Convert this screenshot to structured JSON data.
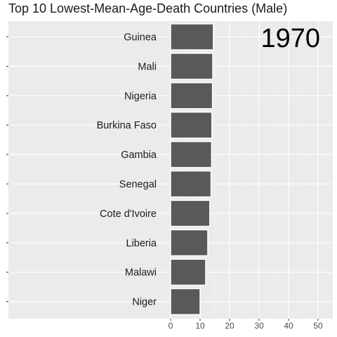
{
  "chart_data": {
    "type": "bar",
    "orientation": "horizontal",
    "title": "Top 10 Lowest-Mean-Age-Death Countries (Male)",
    "year_label": "1970",
    "categories": [
      "Guinea",
      "Mali",
      "Nigeria",
      "Burkina Faso",
      "Gambia",
      "Senegal",
      "Cote d'Ivoire",
      "Liberia",
      "Malawi",
      "Niger"
    ],
    "values": [
      14.5,
      14.3,
      14.2,
      14.0,
      13.9,
      13.7,
      13.3,
      12.6,
      11.9,
      10.0
    ],
    "x_ticks": [
      "0",
      "10",
      "20",
      "30",
      "40",
      "50"
    ],
    "xlim": [
      0,
      52.5
    ],
    "xlabel": "",
    "ylabel": "",
    "grid": true,
    "legend": "none",
    "colors": {
      "panel_background": "#ebebeb",
      "grid_major": "#ffffff",
      "grid_minor": "#f5f5f5",
      "bar_fill": "#595959",
      "bar_border": "#ffffff",
      "text": "#1a1a1a",
      "tick_label": "#4d4d4d",
      "year_label": "#000000"
    }
  }
}
